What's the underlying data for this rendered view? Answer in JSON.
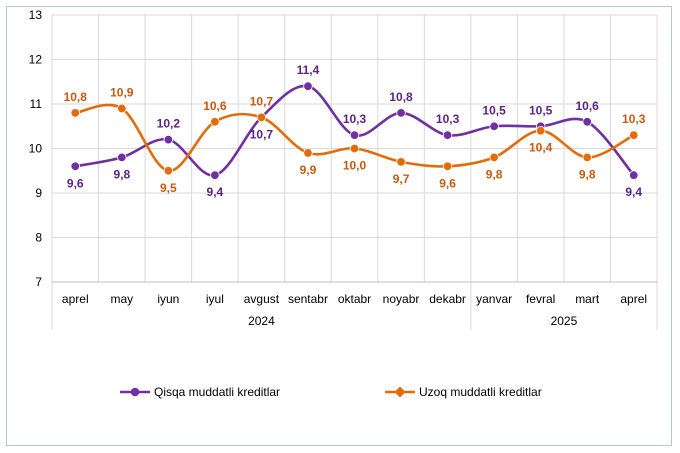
{
  "chart_data": {
    "type": "line",
    "categories": [
      "aprel",
      "may",
      "iyun",
      "iyul",
      "avgust",
      "sentabr",
      "oktabr",
      "noyabr",
      "dekabr",
      "yanvar",
      "fevral",
      "mart",
      "aprel"
    ],
    "year_groups": [
      {
        "label": "2024",
        "start": 0,
        "end": 8
      },
      {
        "label": "2025",
        "start": 9,
        "end": 12
      }
    ],
    "ylim": [
      7,
      13
    ],
    "yticks": [
      "7",
      "8",
      "9",
      "10",
      "11",
      "12",
      "13"
    ],
    "grid": true,
    "legend_position": "bottom",
    "series": [
      {
        "name": "Qisqa muddatli kreditlar",
        "color": "#7030a0",
        "values": [
          9.6,
          9.8,
          10.2,
          9.4,
          10.7,
          11.4,
          10.3,
          10.8,
          10.3,
          10.5,
          10.5,
          10.6,
          9.4
        ],
        "labels": [
          "9,6",
          "9,8",
          "10,2",
          "9,4",
          "10,7",
          "11,4",
          "10,3",
          "10,8",
          "10,3",
          "10,5",
          "10,5",
          "10,6",
          "9,4"
        ],
        "label_side": [
          "below",
          "below",
          "above",
          "below",
          "below",
          "above",
          "above",
          "above",
          "above",
          "above",
          "above",
          "above",
          "below"
        ]
      },
      {
        "name": "Uzoq muddatli kreditlar",
        "color": "#e36c09",
        "values": [
          10.8,
          10.9,
          9.5,
          10.6,
          10.7,
          9.9,
          10.0,
          9.7,
          9.6,
          9.8,
          10.4,
          9.8,
          10.3
        ],
        "labels": [
          "10,8",
          "10,9",
          "9,5",
          "10,6",
          "10,7",
          "9,9",
          "10,0",
          "9,7",
          "9,6",
          "9,8",
          "10,4",
          "9,8",
          "10,3"
        ],
        "label_side": [
          "above",
          "above",
          "below",
          "above",
          "above",
          "below",
          "below",
          "below",
          "below",
          "below",
          "below",
          "below",
          "above"
        ]
      }
    ]
  }
}
